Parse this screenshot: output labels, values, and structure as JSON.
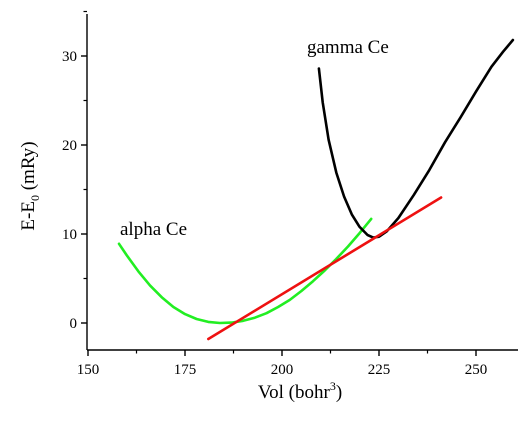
{
  "chart_data": {
    "type": "line",
    "title": "",
    "xlabel": "Vol (bohr",
    "xlabel_sup": "3",
    "xlabel_end": ")",
    "ylabel": "E-E",
    "ylabel_sub": "0",
    "ylabel_end": " (mRy)",
    "xlim": [
      150,
      265
    ],
    "ylim": [
      -3.5,
      35
    ],
    "x_ticks": [
      150,
      175,
      200,
      225,
      250
    ],
    "y_ticks": [
      0,
      10,
      20,
      30
    ],
    "grid": false,
    "series": [
      {
        "name": "alpha Ce",
        "color": "#22ee22",
        "x": [
          158,
          160,
          163,
          166,
          169,
          172,
          175,
          178,
          181,
          184,
          187,
          190,
          193,
          196,
          199,
          202,
          205,
          208,
          211,
          214,
          217,
          220,
          223
        ],
        "y": [
          8.9,
          7.6,
          5.8,
          4.2,
          2.9,
          1.8,
          1.0,
          0.45,
          0.12,
          0.0,
          0.05,
          0.25,
          0.6,
          1.1,
          1.8,
          2.6,
          3.6,
          4.7,
          5.9,
          7.2,
          8.6,
          10.1,
          11.7
        ]
      },
      {
        "name": "gamma Ce",
        "color": "#000000",
        "x": [
          209.5,
          210.5,
          212,
          214,
          216,
          218,
          220,
          222,
          223.5,
          225,
          227,
          230,
          234,
          238,
          242,
          246,
          250,
          254,
          257,
          259.5
        ],
        "y": [
          28.6,
          24.8,
          20.6,
          16.9,
          14.2,
          12.2,
          10.8,
          9.9,
          9.6,
          9.7,
          10.3,
          11.8,
          14.4,
          17.2,
          20.3,
          23.1,
          26.0,
          28.8,
          30.5,
          31.8
        ]
      },
      {
        "name": "",
        "color": "#ee1111",
        "x": [
          181,
          241
        ],
        "y": [
          -1.8,
          14.1
        ]
      }
    ]
  }
}
